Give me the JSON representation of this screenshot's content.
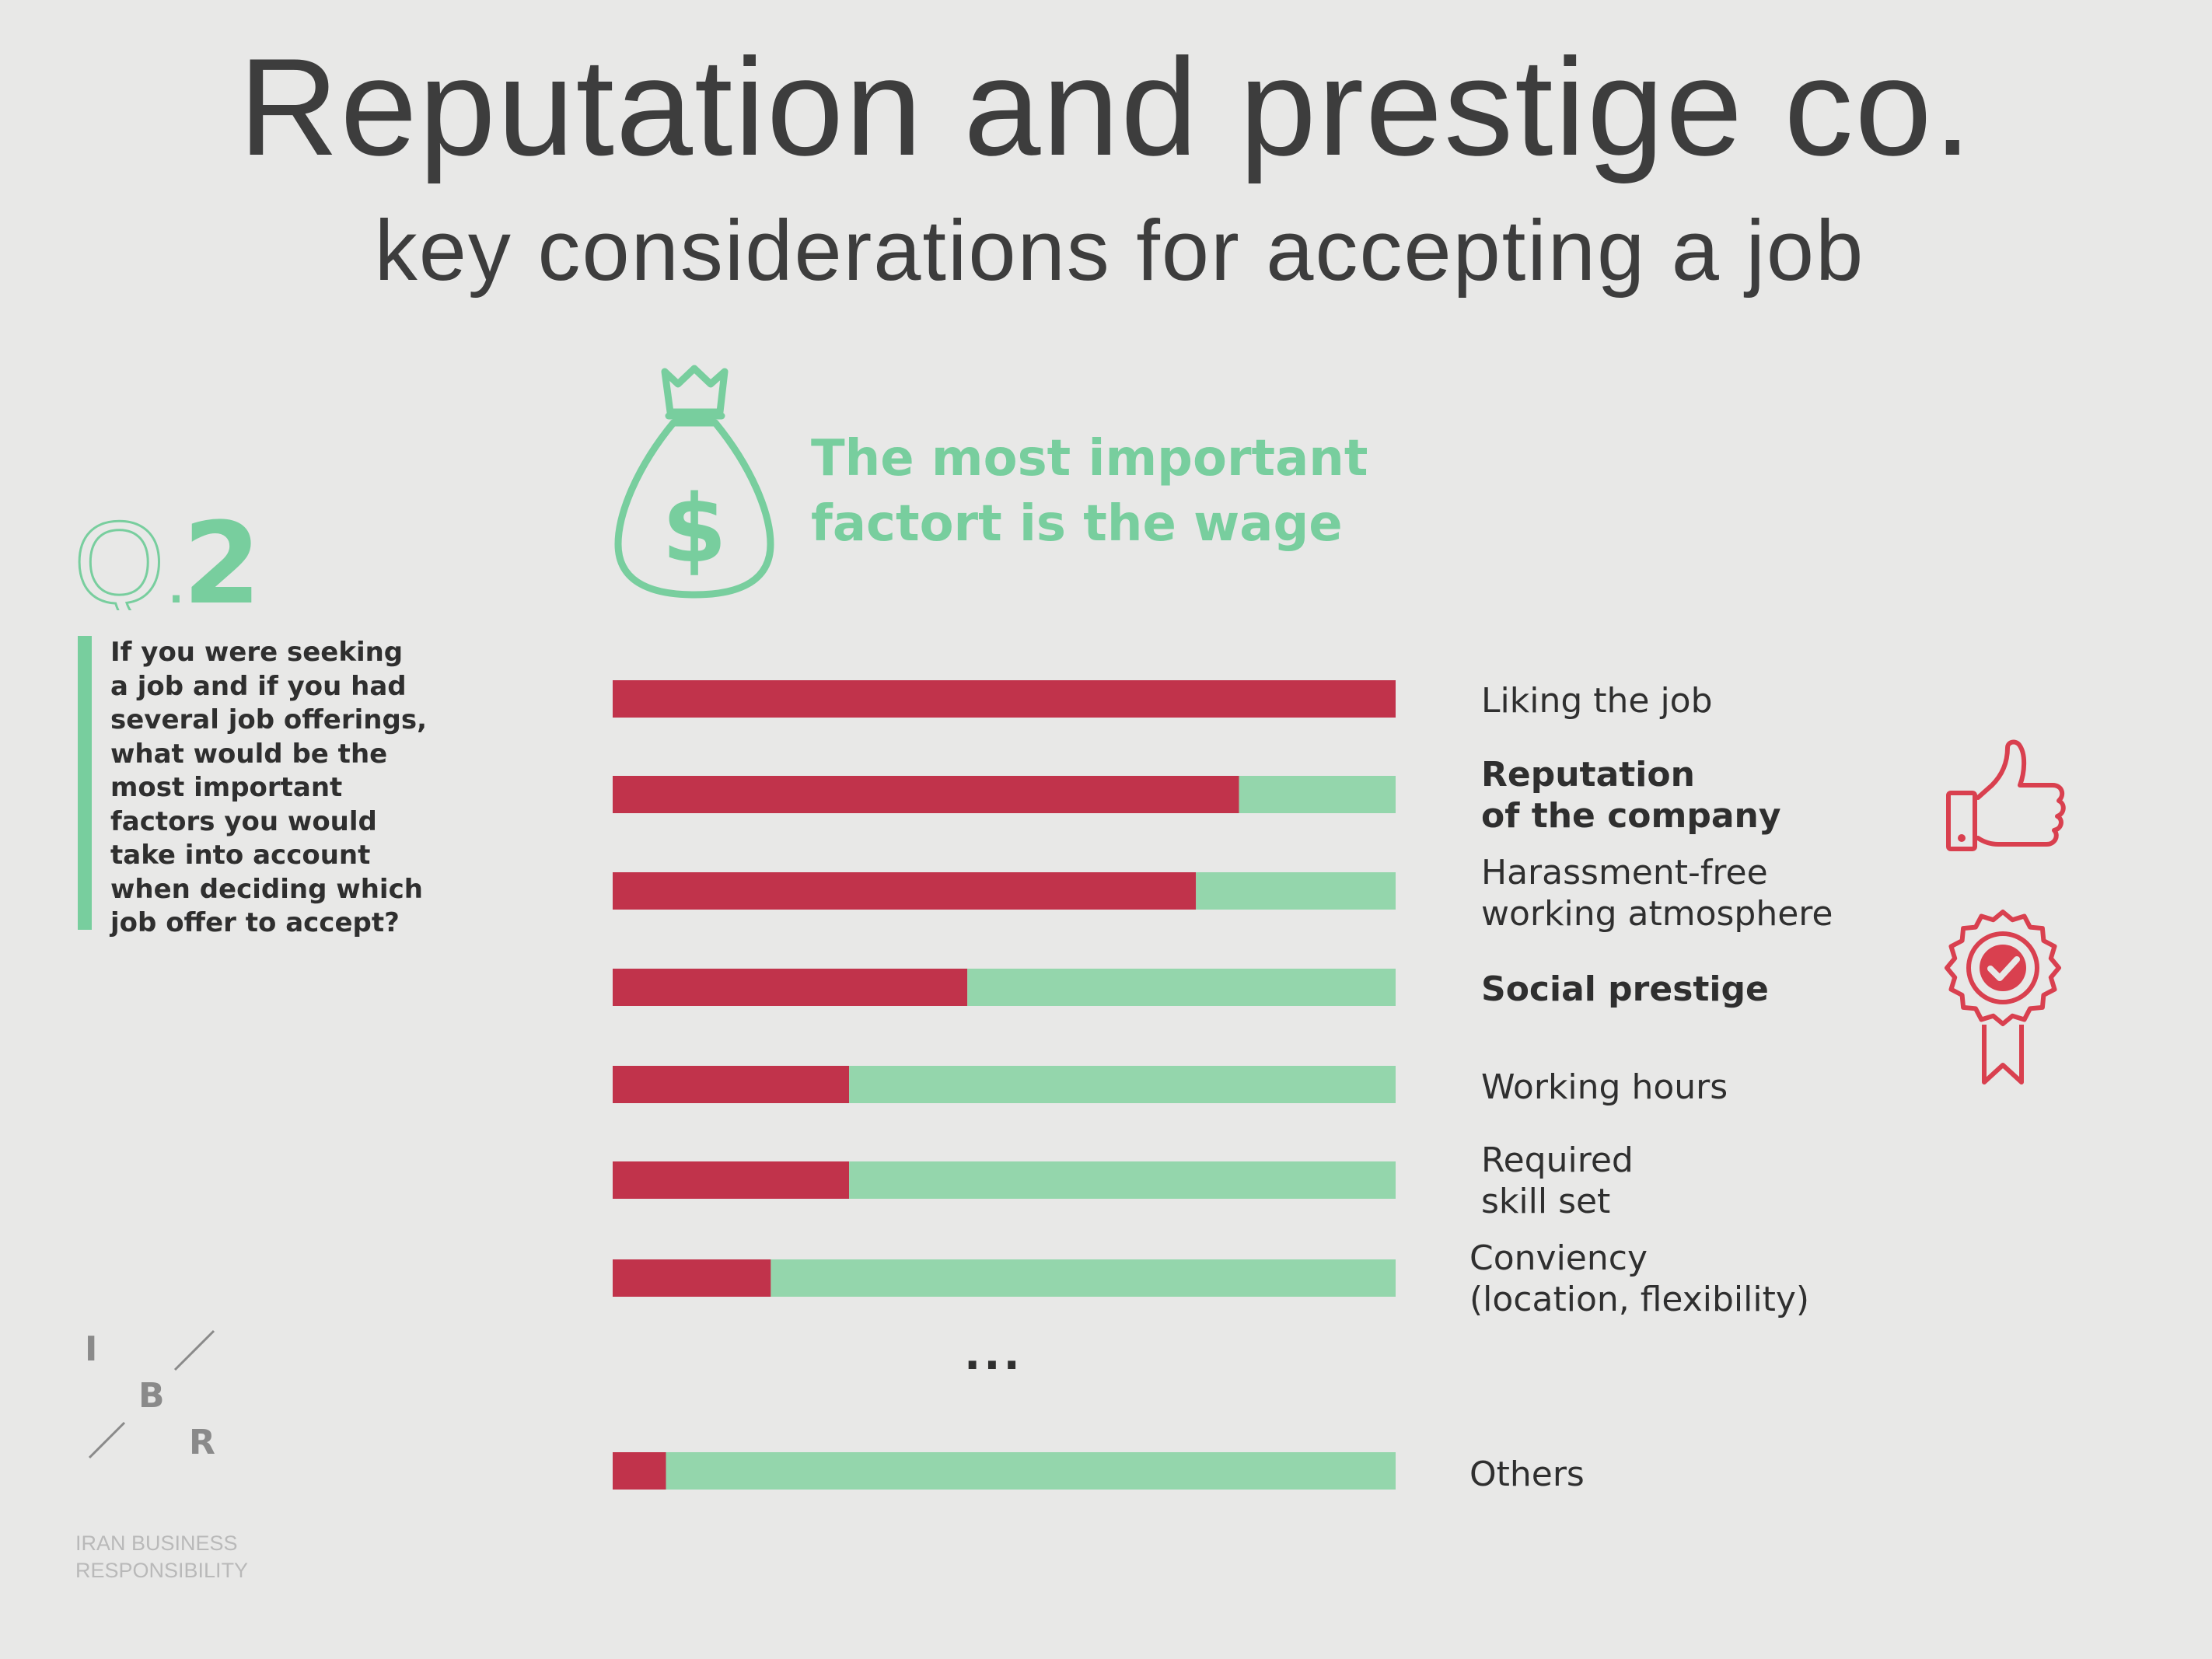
{
  "header": {
    "title": "Reputation and prestige co.",
    "subtitle": "key considerations for accepting a job"
  },
  "headline": {
    "line1": "The most important",
    "line2": "factort is the wage",
    "icon": "money-bag-icon"
  },
  "question": {
    "q_letter": "Q",
    "q_dot": ".",
    "q_number": "2",
    "lines": [
      "If you were seeking",
      "a job and if you had",
      "several job offerings,",
      "what would be the",
      "most important",
      "factors you would",
      "take into account",
      "when deciding which",
      "job offer to accept?"
    ]
  },
  "ellipsis": "...",
  "logo": {
    "letters": [
      "I",
      "B",
      "R"
    ],
    "org_line1": "IRAN BUSINESS",
    "org_line2": "RESPONSIBILITY"
  },
  "icons": [
    "thumbs-up-icon",
    "award-badge-icon"
  ],
  "colors": {
    "red": "#c1334b",
    "green": "#94d6ac",
    "accent_green": "#78ce9e",
    "icon_red": "#d9404f"
  },
  "chart_data": {
    "type": "bar",
    "orientation": "horizontal",
    "stacked": true,
    "xlim": [
      0,
      100
    ],
    "grid": false,
    "categories": [
      "Liking the job",
      "Reputation of the company",
      "Harassment-free working atmosphere",
      "Social prestige",
      "Working hours",
      "Required skill set",
      "Conviency (location, flexibility)",
      "Others"
    ],
    "label_lines": [
      [
        "Liking the job"
      ],
      [
        "Reputation",
        "of the company"
      ],
      [
        "Harassment-free",
        "working atmosphere"
      ],
      [
        "Social prestige"
      ],
      [
        "Working hours"
      ],
      [
        "Required",
        "skill set"
      ],
      [
        "Conviency",
        "(location, flexibility)"
      ],
      [
        "Others"
      ]
    ],
    "bold": [
      false,
      true,
      false,
      true,
      false,
      false,
      false,
      false
    ],
    "series": [
      {
        "values": [
          100,
          80,
          74.5,
          45.3,
          30.2,
          30.2,
          20.2,
          6.8
        ],
        "color": "#c1334b"
      },
      {
        "values": [
          0,
          20,
          25.5,
          54.7,
          69.8,
          69.8,
          79.8,
          93.2
        ],
        "color": "#94d6ac"
      }
    ]
  }
}
